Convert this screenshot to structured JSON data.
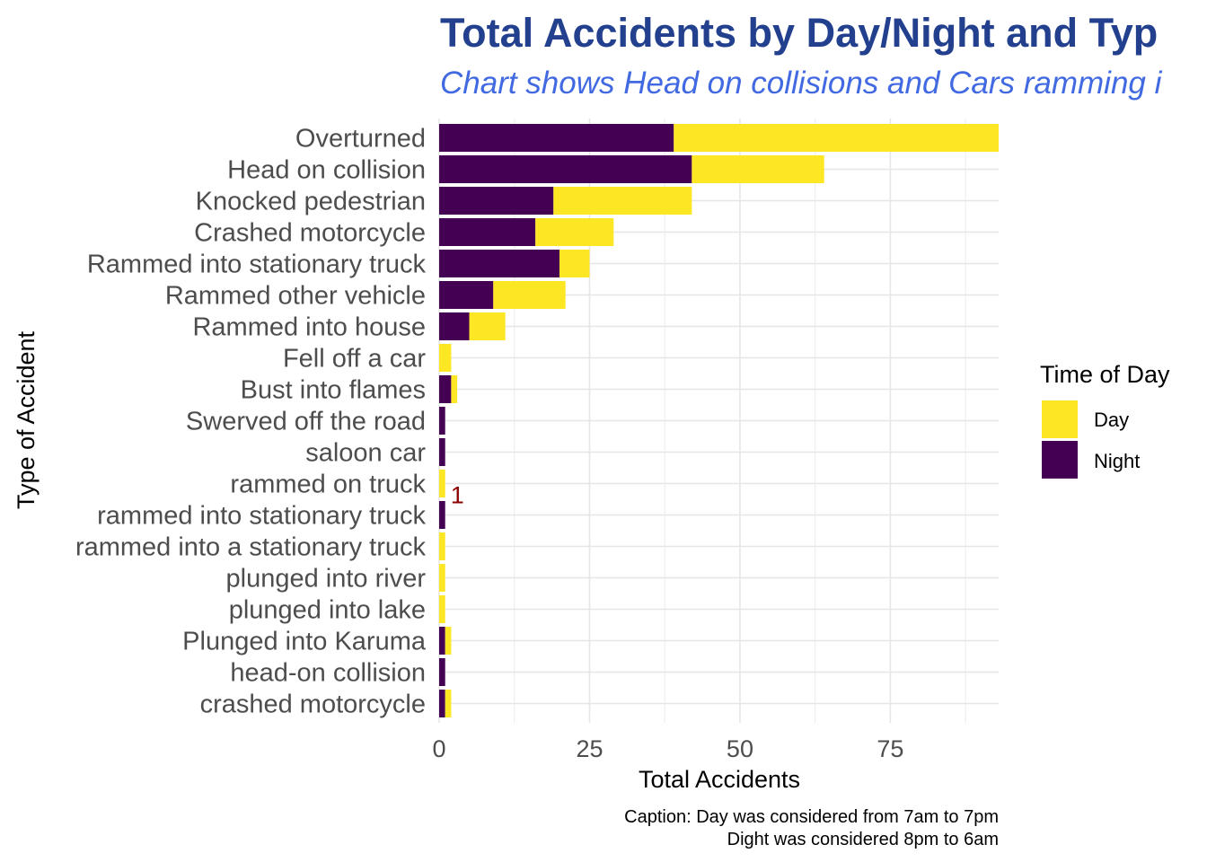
{
  "chart_data": {
    "type": "bar",
    "orientation": "horizontal",
    "stacked": true,
    "title": "Total Accidents by Day/Night and Typ",
    "subtitle": "Chart shows Head on collisions and Cars ramming i",
    "xlabel": "Total Accidents",
    "ylabel": "Type of Accident",
    "xlim": [
      0,
      93
    ],
    "xticks": [
      0,
      25,
      50,
      75
    ],
    "grid": true,
    "categories": [
      "Overturned",
      "Head on collision",
      "Knocked pedestrian",
      "Crashed motorcycle",
      "Rammed into stationary truck",
      "Rammed other vehicle",
      "Rammed into house",
      "Fell off a car",
      "Bust into flames",
      "Swerved off the road",
      "saloon car",
      "rammed on truck",
      "rammed into stationary truck",
      "rammed into a stationary truck",
      "plunged into river",
      "plunged into lake",
      "Plunged into Karuma",
      "head-on collision",
      "crashed motorcycle"
    ],
    "series": [
      {
        "name": "Night",
        "color": "#440154",
        "values": [
          39,
          42,
          19,
          16,
          20,
          9,
          5,
          0,
          2,
          1,
          1,
          0,
          1,
          0,
          0,
          0,
          1,
          1,
          1
        ]
      },
      {
        "name": "Day",
        "color": "#fde725",
        "values": [
          54,
          22,
          23,
          13,
          5,
          12,
          6,
          2,
          1,
          0,
          0,
          1,
          0,
          1,
          1,
          1,
          1,
          0,
          1
        ]
      }
    ],
    "annotations": [
      {
        "text": "1",
        "category": "rammed on truck",
        "x": 1
      }
    ],
    "legend": {
      "title": "Time of Day",
      "position": "right",
      "items": [
        {
          "label": "Day",
          "color": "#fde725"
        },
        {
          "label": "Night",
          "color": "#440154"
        }
      ]
    },
    "caption": [
      "Caption: Day was considered from 7am to 7pm",
      "Dight was considered 8pm to 6am"
    ]
  }
}
